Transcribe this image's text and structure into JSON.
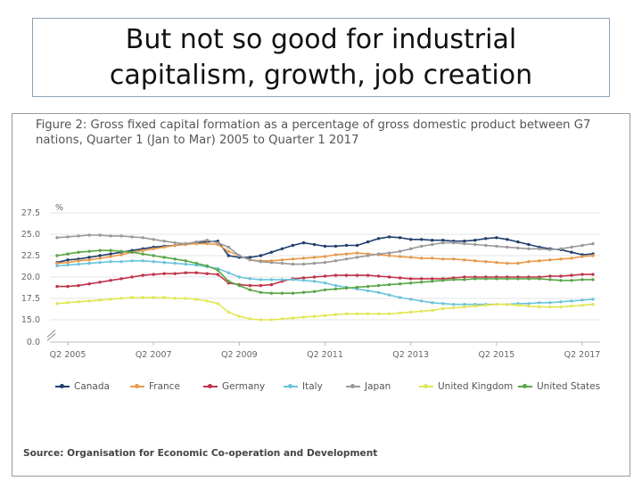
{
  "slide": {
    "title": "But not so good for industrial\ncapitalism, growth, job creation"
  },
  "figure": {
    "caption": "Figure 2: Gross fixed capital formation as a percentage of gross domestic product between G7 nations, Quarter 1 (Jan to Mar) 2005 to Quarter 1 2017",
    "source": "Source: Organisation for Economic Co-operation and Development"
  },
  "chart_data": {
    "type": "line",
    "title": "Figure 2: Gross fixed capital formation as a percentage of gross domestic product between G7 nations, Quarter 1 (Jan to Mar) 2005 to Quarter 1 2017",
    "ylabel": "%",
    "xlabel": "",
    "ylim": [
      0,
      27.5
    ],
    "axis_break": [
      0,
      15
    ],
    "y_ticks": [
      "0.0",
      "15.0",
      "17.5",
      "20.0",
      "22.5",
      "25.0",
      "27.5"
    ],
    "y_tick_values": [
      0,
      15,
      17.5,
      20,
      22.5,
      25,
      27.5
    ],
    "x_tick_labels": [
      "Q2 2005",
      "Q2 2007",
      "Q2 2009",
      "Q2 2011",
      "Q2 2013",
      "Q2 2015",
      "Q2 2017"
    ],
    "x_tick_quarters": [
      1,
      9,
      17,
      25,
      33,
      41,
      49
    ],
    "grid": true,
    "legend_position": "bottom",
    "series": [
      {
        "name": "Canada",
        "color": "#1f3f6e",
        "values": [
          21.7,
          22.0,
          22.1,
          22.3,
          22.5,
          22.7,
          22.9,
          23.1,
          23.3,
          23.5,
          23.6,
          23.7,
          23.9,
          24.0,
          24.1,
          24.2,
          22.5,
          22.3,
          22.3,
          22.5,
          22.9,
          23.3,
          23.7,
          24.0,
          23.8,
          23.6,
          23.6,
          23.7,
          23.7,
          24.1,
          24.5,
          24.7,
          24.6,
          24.4,
          24.4,
          24.3,
          24.3,
          24.2,
          24.2,
          24.3,
          24.5,
          24.6,
          24.4,
          24.1,
          23.8,
          23.5,
          23.3,
          23.2,
          22.9,
          22.6,
          22.7
        ]
      },
      {
        "name": "France",
        "color": "#e89a4a",
        "values": [
          21.6,
          21.7,
          21.9,
          22.0,
          22.2,
          22.4,
          22.6,
          22.9,
          23.1,
          23.3,
          23.5,
          23.7,
          23.8,
          23.9,
          23.9,
          23.8,
          23.0,
          22.5,
          22.0,
          21.9,
          21.9,
          22.0,
          22.1,
          22.2,
          22.3,
          22.4,
          22.6,
          22.7,
          22.8,
          22.7,
          22.6,
          22.5,
          22.4,
          22.3,
          22.2,
          22.2,
          22.1,
          22.1,
          22.0,
          21.9,
          21.8,
          21.7,
          21.6,
          21.6,
          21.8,
          21.9,
          22.0,
          22.1,
          22.2,
          22.4,
          22.5
        ]
      },
      {
        "name": "Germany",
        "color": "#c0334a",
        "values": [
          18.9,
          18.9,
          19.0,
          19.2,
          19.4,
          19.6,
          19.8,
          20.0,
          20.2,
          20.3,
          20.4,
          20.4,
          20.5,
          20.5,
          20.4,
          20.3,
          19.3,
          19.1,
          19.0,
          19.0,
          19.1,
          19.5,
          19.8,
          19.9,
          20.0,
          20.1,
          20.2,
          20.2,
          20.2,
          20.2,
          20.1,
          20.0,
          19.9,
          19.8,
          19.8,
          19.8,
          19.8,
          19.9,
          20.0,
          20.0,
          20.0,
          20.0,
          20.0,
          20.0,
          20.0,
          20.0,
          20.1,
          20.1,
          20.2,
          20.3,
          20.3
        ]
      },
      {
        "name": "Italy",
        "color": "#6cc4dc",
        "values": [
          21.3,
          21.4,
          21.5,
          21.6,
          21.7,
          21.8,
          21.8,
          21.9,
          21.9,
          21.8,
          21.7,
          21.6,
          21.5,
          21.4,
          21.2,
          21.0,
          20.5,
          20.0,
          19.8,
          19.7,
          19.7,
          19.7,
          19.7,
          19.6,
          19.5,
          19.3,
          19.0,
          18.8,
          18.6,
          18.4,
          18.2,
          17.9,
          17.6,
          17.4,
          17.2,
          17.0,
          16.9,
          16.8,
          16.8,
          16.8,
          16.8,
          16.8,
          16.8,
          16.9,
          16.9,
          17.0,
          17.0,
          17.1,
          17.2,
          17.3,
          17.4
        ]
      },
      {
        "name": "Japan",
        "color": "#9a9a9a",
        "values": [
          24.6,
          24.7,
          24.8,
          24.9,
          24.9,
          24.8,
          24.8,
          24.7,
          24.6,
          24.4,
          24.2,
          24.0,
          23.9,
          24.1,
          24.3,
          24.0,
          23.5,
          22.5,
          22.0,
          21.8,
          21.7,
          21.6,
          21.5,
          21.5,
          21.6,
          21.7,
          21.9,
          22.1,
          22.3,
          22.5,
          22.7,
          22.8,
          23.0,
          23.3,
          23.6,
          23.8,
          24.0,
          24.0,
          23.9,
          23.8,
          23.7,
          23.6,
          23.5,
          23.4,
          23.3,
          23.3,
          23.2,
          23.3,
          23.5,
          23.7,
          23.9
        ]
      },
      {
        "name": "United Kingdom",
        "color": "#e3e655",
        "values": [
          16.9,
          17.0,
          17.1,
          17.2,
          17.3,
          17.4,
          17.5,
          17.6,
          17.6,
          17.6,
          17.6,
          17.5,
          17.5,
          17.4,
          17.2,
          16.9,
          15.9,
          15.4,
          15.1,
          15.0,
          15.0,
          15.1,
          15.2,
          15.3,
          15.4,
          15.5,
          15.6,
          15.7,
          15.7,
          15.7,
          15.7,
          15.7,
          15.8,
          15.9,
          16.0,
          16.1,
          16.3,
          16.4,
          16.5,
          16.6,
          16.7,
          16.8,
          16.8,
          16.7,
          16.6,
          16.5,
          16.5,
          16.5,
          16.6,
          16.7,
          16.8
        ]
      },
      {
        "name": "United States",
        "color": "#5aa646",
        "values": [
          22.5,
          22.7,
          22.9,
          23.0,
          23.1,
          23.1,
          23.0,
          22.9,
          22.7,
          22.5,
          22.3,
          22.1,
          21.9,
          21.6,
          21.3,
          20.8,
          19.5,
          19.0,
          18.5,
          18.2,
          18.1,
          18.1,
          18.1,
          18.2,
          18.3,
          18.5,
          18.6,
          18.7,
          18.8,
          18.9,
          19.0,
          19.1,
          19.2,
          19.3,
          19.4,
          19.5,
          19.6,
          19.7,
          19.7,
          19.8,
          19.8,
          19.8,
          19.8,
          19.8,
          19.8,
          19.8,
          19.7,
          19.6,
          19.6,
          19.7,
          19.7
        ]
      }
    ]
  }
}
